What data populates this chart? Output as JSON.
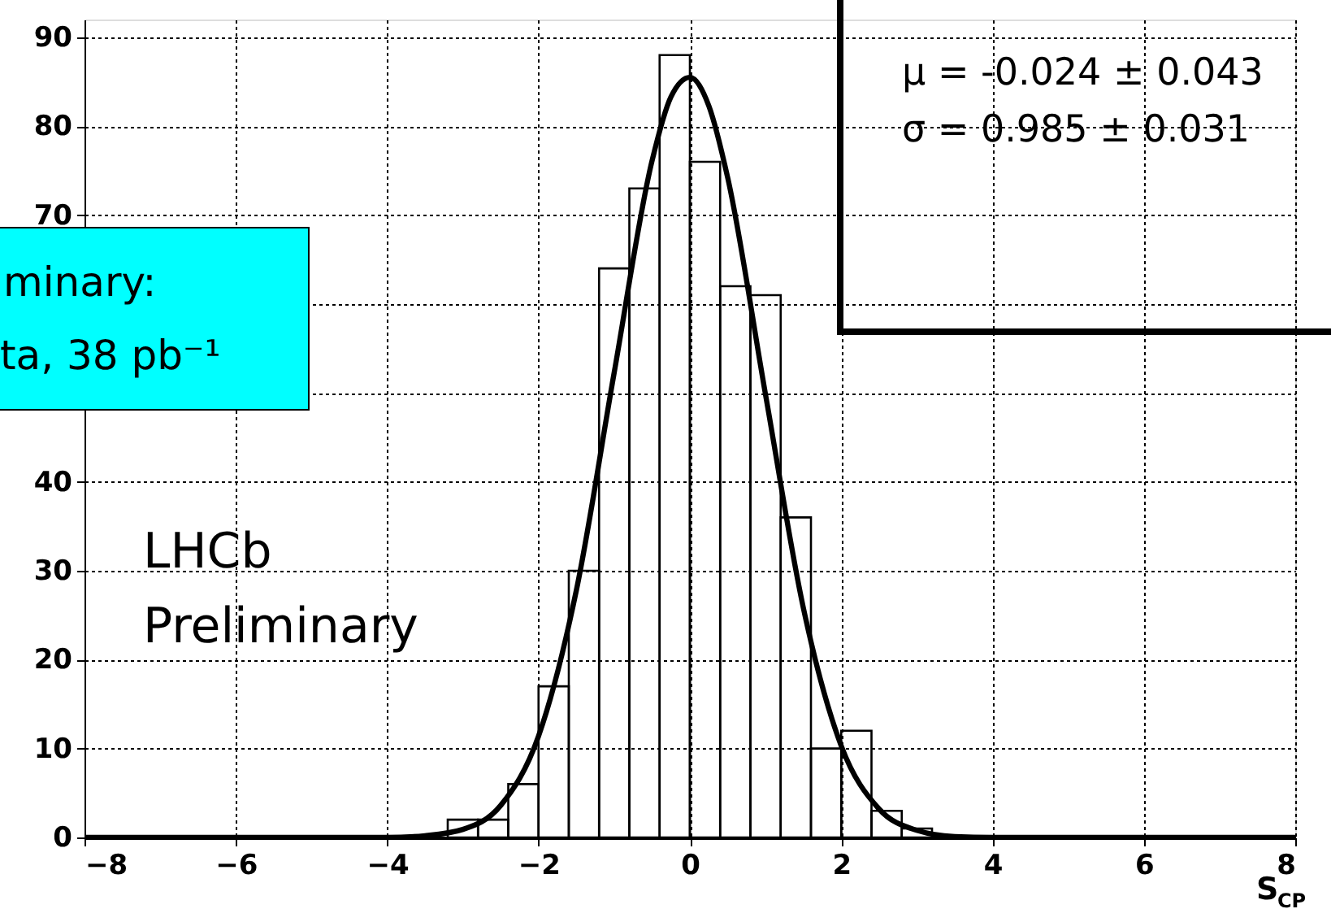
{
  "chart_data": {
    "type": "histogram",
    "bins": [
      -3.2,
      -2.8,
      -2.4,
      -2.0,
      -1.6,
      -1.2,
      -0.8,
      -0.4,
      0.0,
      0.4,
      0.8,
      1.2,
      1.6,
      2.0,
      2.4,
      2.8,
      3.2
    ],
    "values": [
      2,
      2,
      6,
      17,
      30,
      64,
      73,
      88,
      76,
      62,
      61,
      36,
      10,
      12,
      3,
      1
    ],
    "color": "#000000",
    "series": [
      {
        "type": "line",
        "color": "#000000",
        "x": [
          -8,
          -4,
          -3.5,
          -3,
          -2.5,
          -2,
          -1.5,
          -1,
          -0.5,
          -0.25,
          0,
          0.25,
          0.5,
          1,
          1.5,
          2,
          2.5,
          3,
          3.5,
          4,
          8
        ],
        "values": [
          0,
          0,
          0.2,
          0.9,
          3.6,
          11.4,
          27.8,
          52.3,
          76.1,
          83.3,
          85.5,
          82.3,
          74.2,
          49.8,
          25.8,
          10.3,
          3.2,
          0.8,
          0.1,
          0,
          0
        ]
      }
    ],
    "xlabel": "S$_{CP}$",
    "xlim": [
      -8,
      8
    ],
    "xticks": [
      -8,
      -6,
      -4,
      -2,
      0,
      2,
      4,
      6,
      8
    ],
    "ylim": [
      0,
      92
    ],
    "yticks": [
      0,
      10,
      20,
      30,
      40,
      {
        "value": 50,
        "label": null
      },
      {
        "value": 60,
        "label": null
      },
      70,
      80,
      90
    ],
    "grid": true,
    "annotations": [
      "minary:",
      "ta, 38 pb⁻¹",
      "LHCb",
      "Preliminary",
      "μ = -0.024 ± 0.043",
      "σ = 0.985 ± 0.031"
    ]
  }
}
